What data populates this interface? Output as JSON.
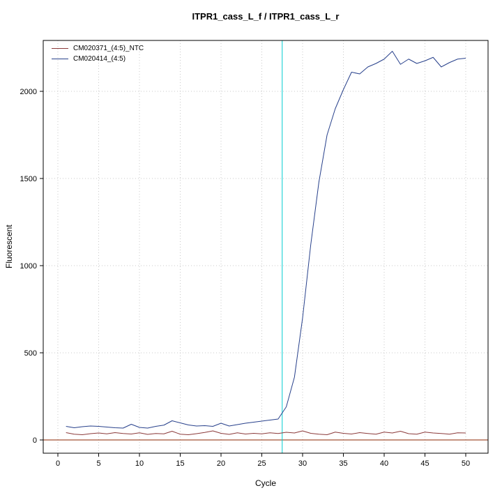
{
  "title": "ITPR1_cass_L_f / ITPR1_cass_L_r",
  "chart_data": {
    "type": "line",
    "title": "ITPR1_cass_L_f / ITPR1_cass_L_r",
    "xlabel": "Cycle",
    "ylabel": "Fluorescent",
    "xlim": [
      0,
      52
    ],
    "ylim": [
      -75,
      2290
    ],
    "x_ticks": [
      0,
      5,
      10,
      15,
      20,
      25,
      30,
      35,
      40,
      45,
      50
    ],
    "y_ticks": [
      0,
      500,
      1000,
      1500,
      2000
    ],
    "grid": true,
    "grid_style": "dotted",
    "grid_color": "#c8c8c8",
    "threshold_line": {
      "x": 27.5,
      "color": "#00CED1"
    },
    "baseline_line": {
      "y": 0,
      "color": "#8B2500"
    },
    "legend": {
      "position": "top-left",
      "entries": [
        {
          "label": "CM020371_(4:5)_NTC",
          "color": "#8B3A3A"
        },
        {
          "label": "CM020414_(4:5)",
          "color": "#27408B"
        }
      ]
    },
    "x": [
      1,
      2,
      3,
      4,
      5,
      6,
      7,
      8,
      9,
      10,
      11,
      12,
      13,
      14,
      15,
      16,
      17,
      18,
      19,
      20,
      21,
      22,
      23,
      24,
      25,
      26,
      27,
      28,
      29,
      30,
      31,
      32,
      33,
      34,
      35,
      36,
      37,
      38,
      39,
      40,
      41,
      42,
      43,
      44,
      45,
      46,
      47,
      48,
      49,
      50
    ],
    "series": [
      {
        "name": "CM020371_(4:5)_NTC",
        "color": "#8B3A3A",
        "values": [
          42,
          33,
          30,
          36,
          40,
          35,
          42,
          37,
          34,
          41,
          32,
          37,
          35,
          50,
          33,
          30,
          36,
          43,
          52,
          38,
          32,
          41,
          34,
          38,
          35,
          41,
          37,
          44,
          40,
          52,
          38,
          33,
          30,
          45,
          38,
          34,
          42,
          37,
          33,
          45,
          40,
          50,
          36,
          33,
          45,
          40,
          37,
          33,
          41,
          40
        ]
      },
      {
        "name": "CM020414_(4:5)",
        "color": "#27408B",
        "values": [
          78,
          70,
          76,
          80,
          78,
          74,
          70,
          68,
          90,
          72,
          68,
          78,
          85,
          110,
          98,
          86,
          80,
          82,
          78,
          96,
          80,
          88,
          96,
          102,
          108,
          114,
          120,
          190,
          360,
          700,
          1120,
          1480,
          1750,
          1900,
          2010,
          2110,
          2100,
          2140,
          2160,
          2185,
          2230,
          2155,
          2185,
          2160,
          2175,
          2195,
          2140,
          2165,
          2185,
          2190
        ]
      }
    ]
  }
}
